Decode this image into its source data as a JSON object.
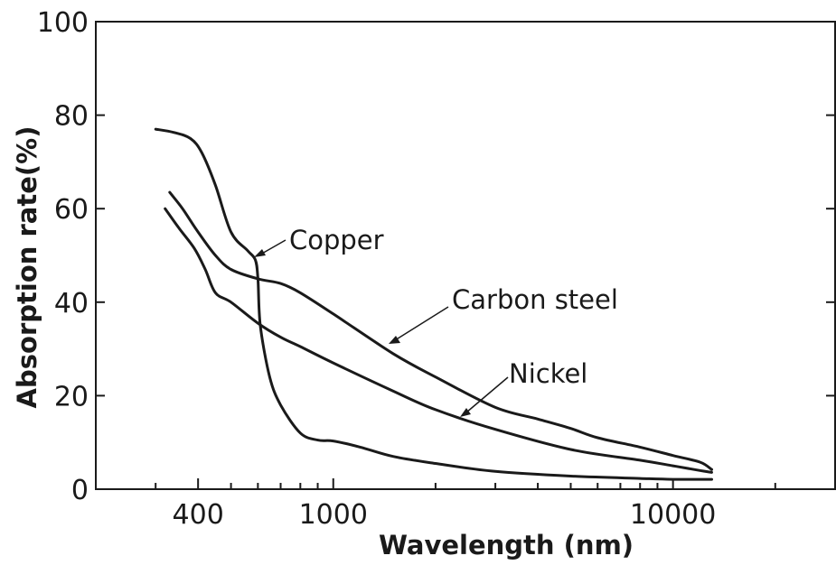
{
  "chart_data": {
    "type": "line",
    "title": "",
    "xlabel": "Wavelength (nm)",
    "ylabel": "Absorption rate(%)",
    "x_scale": "log",
    "xlim": [
      200,
      30000
    ],
    "ylim": [
      0,
      100
    ],
    "x_ticks": [
      400,
      1000,
      10000
    ],
    "x_minor_ticks": [
      300,
      500,
      600,
      700,
      800,
      900,
      2000,
      3000,
      4000,
      5000,
      6000,
      7000,
      8000,
      9000,
      20000,
      30000
    ],
    "y_ticks": [
      0,
      20,
      40,
      60,
      80,
      100
    ],
    "grid": false,
    "legend": "none",
    "series": [
      {
        "name": "Copper",
        "x": [
          300,
          340,
          380,
          410,
          450,
          500,
          560,
          590,
          600,
          610,
          650,
          700,
          800,
          900,
          1000,
          1200,
          1500,
          2000,
          3000,
          5000,
          8000,
          10000,
          13000
        ],
        "y": [
          77,
          76.3,
          75,
          72,
          65,
          55,
          51,
          49,
          45,
          35,
          24,
          18,
          12,
          10.5,
          10.3,
          9,
          7,
          5.5,
          3.8,
          2.8,
          2.3,
          2.1,
          2.1
        ]
      },
      {
        "name": "Carbon steel",
        "x": [
          330,
          360,
          400,
          450,
          500,
          600,
          700,
          800,
          1000,
          1500,
          2000,
          3000,
          4000,
          5000,
          6000,
          8000,
          10000,
          12000,
          13000
        ],
        "y": [
          63.5,
          60,
          55,
          50,
          47,
          45,
          44,
          42,
          37.5,
          29,
          24,
          17.5,
          15,
          13,
          11,
          9,
          7.2,
          5.8,
          4.2
        ]
      },
      {
        "name": "Nickel",
        "x": [
          320,
          350,
          390,
          420,
          450,
          500,
          600,
          700,
          800,
          1000,
          1500,
          2000,
          3000,
          5000,
          8000,
          10000,
          12000,
          13000
        ],
        "y": [
          60,
          56,
          51.5,
          47,
          42,
          40,
          35.5,
          32.5,
          30.5,
          27,
          21,
          17,
          12.8,
          8.5,
          6.2,
          5,
          4,
          3.6
        ]
      }
    ],
    "annotations": [
      {
        "text": "Copper",
        "points_to_series": "Copper"
      },
      {
        "text": "Carbon steel",
        "points_to_series": "Carbon steel"
      },
      {
        "text": "Nickel",
        "points_to_series": "Nickel"
      }
    ]
  }
}
